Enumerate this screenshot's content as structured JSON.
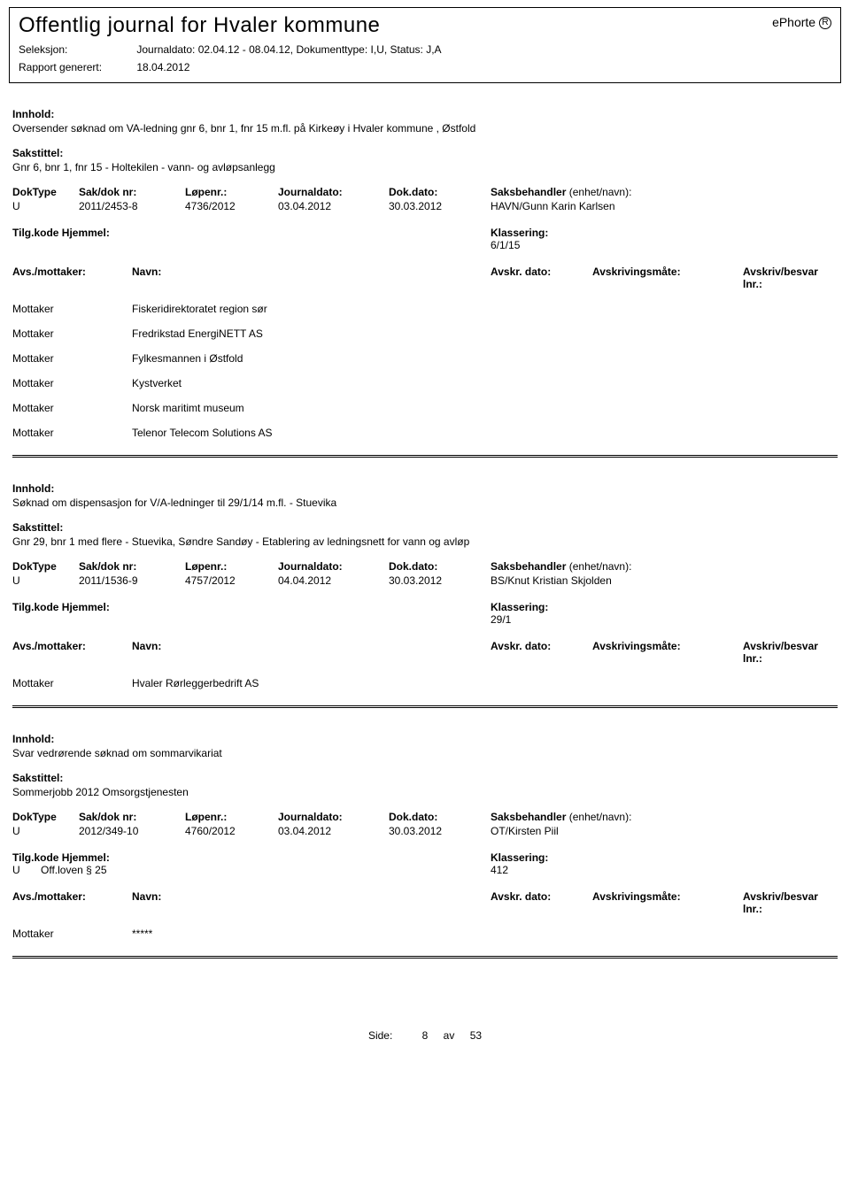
{
  "header": {
    "title": "Offentlig journal for Hvaler kommune",
    "ephorte": "ePhorte",
    "seleksjon_label": "Seleksjon:",
    "seleksjon_value": "Journaldato: 02.04.12 - 08.04.12, Dokumenttype: I,U, Status: J,A",
    "rapport_label": "Rapport generert:",
    "rapport_value": "18.04.2012"
  },
  "labels": {
    "innhold": "Innhold:",
    "sakstittel": "Sakstittel:",
    "doktype": "DokType",
    "sakdok": "Sak/dok nr:",
    "lopenr": "Løpenr.:",
    "journaldato": "Journaldato:",
    "dokdato": "Dok.dato:",
    "saksbehandler": "Saksbehandler",
    "enhet": "(enhet/navn):",
    "tilgkode": "Tilg.kode",
    "hjemmel": "Hjemmel:",
    "klassering": "Klassering:",
    "avs": "Avs./mottaker:",
    "navn": "Navn:",
    "avskrdato": "Avskr. dato:",
    "avskrmate": "Avskrivingsmåte:",
    "avskrlnr": "Avskriv/besvar lnr.:",
    "mottaker": "Mottaker"
  },
  "entries": [
    {
      "innhold": "Oversender søknad om VA-ledning gnr 6, bnr 1, fnr 15 m.fl.  på Kirkeøy i Hvaler kommune , Østfold",
      "sakstittel": "Gnr 6, bnr 1, fnr 15 - Holtekilen - vann- og avløpsanlegg",
      "doktype": "U",
      "sakdok": "2011/2453-8",
      "lopenr": "4736/2012",
      "journaldato": "03.04.2012",
      "dokdato": "30.03.2012",
      "saksbehandler": "HAVN/Gunn Karin Karlsen",
      "tilgkode": "",
      "hjemmel": "",
      "klassering": "6/1/15",
      "recipients": [
        "Fiskeridirektoratet region sør",
        "Fredrikstad EnergiNETT AS",
        "Fylkesmannen i Østfold",
        "Kystverket",
        "Norsk maritimt museum",
        "Telenor Telecom Solutions AS"
      ]
    },
    {
      "innhold": "Søknad om dispensasjon for V/A-ledninger til 29/1/14 m.fl. - Stuevika",
      "sakstittel": "Gnr 29, bnr 1 med flere - Stuevika, Søndre Sandøy - Etablering av ledningsnett for vann og avløp",
      "doktype": "U",
      "sakdok": "2011/1536-9",
      "lopenr": "4757/2012",
      "journaldato": "04.04.2012",
      "dokdato": "30.03.2012",
      "saksbehandler": "BS/Knut Kristian Skjolden",
      "tilgkode": "",
      "hjemmel": "",
      "klassering": "29/1",
      "recipients": [
        "Hvaler Rørleggerbedrift AS"
      ]
    },
    {
      "innhold": "Svar vedrørende søknad om sommarvikariat",
      "sakstittel": "Sommerjobb 2012 Omsorgstjenesten",
      "doktype": "U",
      "sakdok": "2012/349-10",
      "lopenr": "4760/2012",
      "journaldato": "03.04.2012",
      "dokdato": "30.03.2012",
      "saksbehandler": "OT/Kirsten Piil",
      "tilgkode": "U",
      "hjemmel": "Off.loven § 25",
      "klassering": "412",
      "recipients": [
        "*****"
      ]
    }
  ],
  "footer": {
    "side_label": "Side:",
    "page": "8",
    "av": "av",
    "total": "53"
  }
}
